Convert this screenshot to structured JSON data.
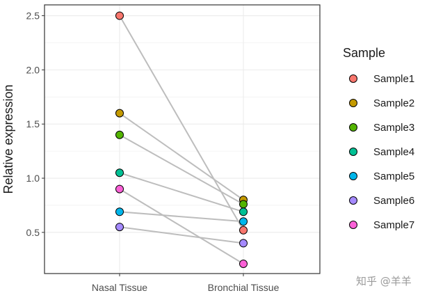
{
  "chart_data": {
    "type": "line",
    "title": "",
    "xlabel": "",
    "ylabel": "Relative expression",
    "categories": [
      "Nasal Tissue",
      "Bronchial Tissue"
    ],
    "ylim": [
      0.12,
      2.6
    ],
    "yticks": [
      0.5,
      1.0,
      1.5,
      2.0,
      2.5
    ],
    "ytick_labels": [
      "0.5",
      "1.0",
      "1.5",
      "2.0",
      "2.5"
    ],
    "grid": true,
    "legend_title": "Sample",
    "legend_position": "right",
    "line_color": "#bdbdbd",
    "series": [
      {
        "name": "Sample1",
        "color": "#F8766D",
        "values": [
          2.5,
          0.52
        ]
      },
      {
        "name": "Sample2",
        "color": "#C49A00",
        "values": [
          1.6,
          0.8
        ]
      },
      {
        "name": "Sample3",
        "color": "#53B400",
        "values": [
          1.4,
          0.76
        ]
      },
      {
        "name": "Sample4",
        "color": "#00C094",
        "values": [
          1.05,
          0.69
        ]
      },
      {
        "name": "Sample5",
        "color": "#00B6EB",
        "values": [
          0.69,
          0.6
        ]
      },
      {
        "name": "Sample6",
        "color": "#A58AFF",
        "values": [
          0.55,
          0.4
        ]
      },
      {
        "name": "Sample7",
        "color": "#FB61D7",
        "values": [
          0.9,
          0.21
        ]
      }
    ]
  },
  "watermark": "知乎 @羊羊"
}
